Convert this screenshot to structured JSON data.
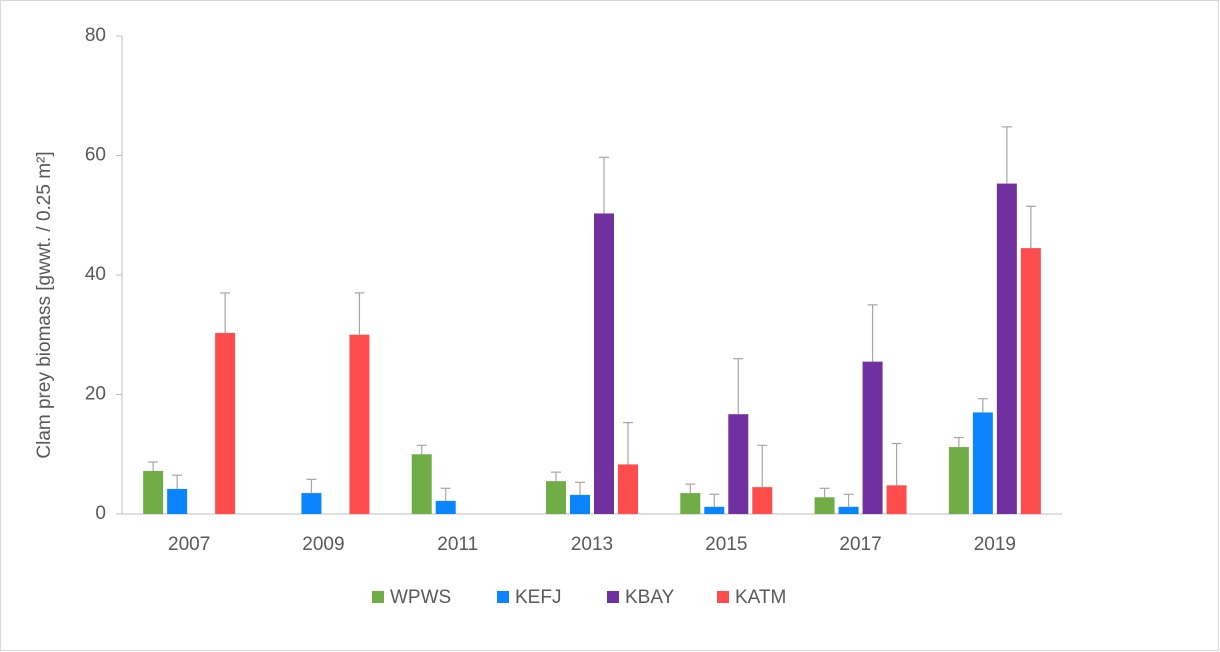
{
  "chart_data": {
    "type": "bar",
    "y_label": "Clam prey biomass [gwwt. / 0.25 m²]",
    "categories": [
      "2007",
      "2009",
      "2011",
      "2013",
      "2015",
      "2017",
      "2019"
    ],
    "series": [
      {
        "name": "WPWS",
        "color": "#70ad47",
        "values": [
          7.2,
          null,
          10,
          5.5,
          3.5,
          2.8,
          11.2
        ],
        "errors": [
          1.5,
          null,
          1.5,
          1.5,
          1.5,
          1.5,
          1.6
        ]
      },
      {
        "name": "KEFJ",
        "color": "#0a84ff",
        "values": [
          4.2,
          3.5,
          2.2,
          3.2,
          1.2,
          1.2,
          17
        ],
        "errors": [
          2.3,
          2.3,
          2.1,
          2.1,
          2.1,
          2.1,
          2.3
        ]
      },
      {
        "name": "KBAY",
        "color": "#7030a0",
        "values": [
          null,
          null,
          null,
          50.3,
          16.7,
          25.5,
          55.3
        ],
        "errors": [
          null,
          null,
          null,
          9.4,
          9.3,
          9.5,
          9.5
        ]
      },
      {
        "name": "KATM",
        "color": "#ff4d4d",
        "values": [
          30.3,
          30,
          null,
          8.3,
          4.5,
          4.8,
          44.5
        ],
        "errors": [
          6.7,
          7,
          null,
          7,
          7,
          7,
          7
        ]
      }
    ],
    "ylim": [
      0,
      80
    ],
    "yticks": [
      0,
      20,
      40,
      60,
      80
    ],
    "legend": "bottom"
  }
}
